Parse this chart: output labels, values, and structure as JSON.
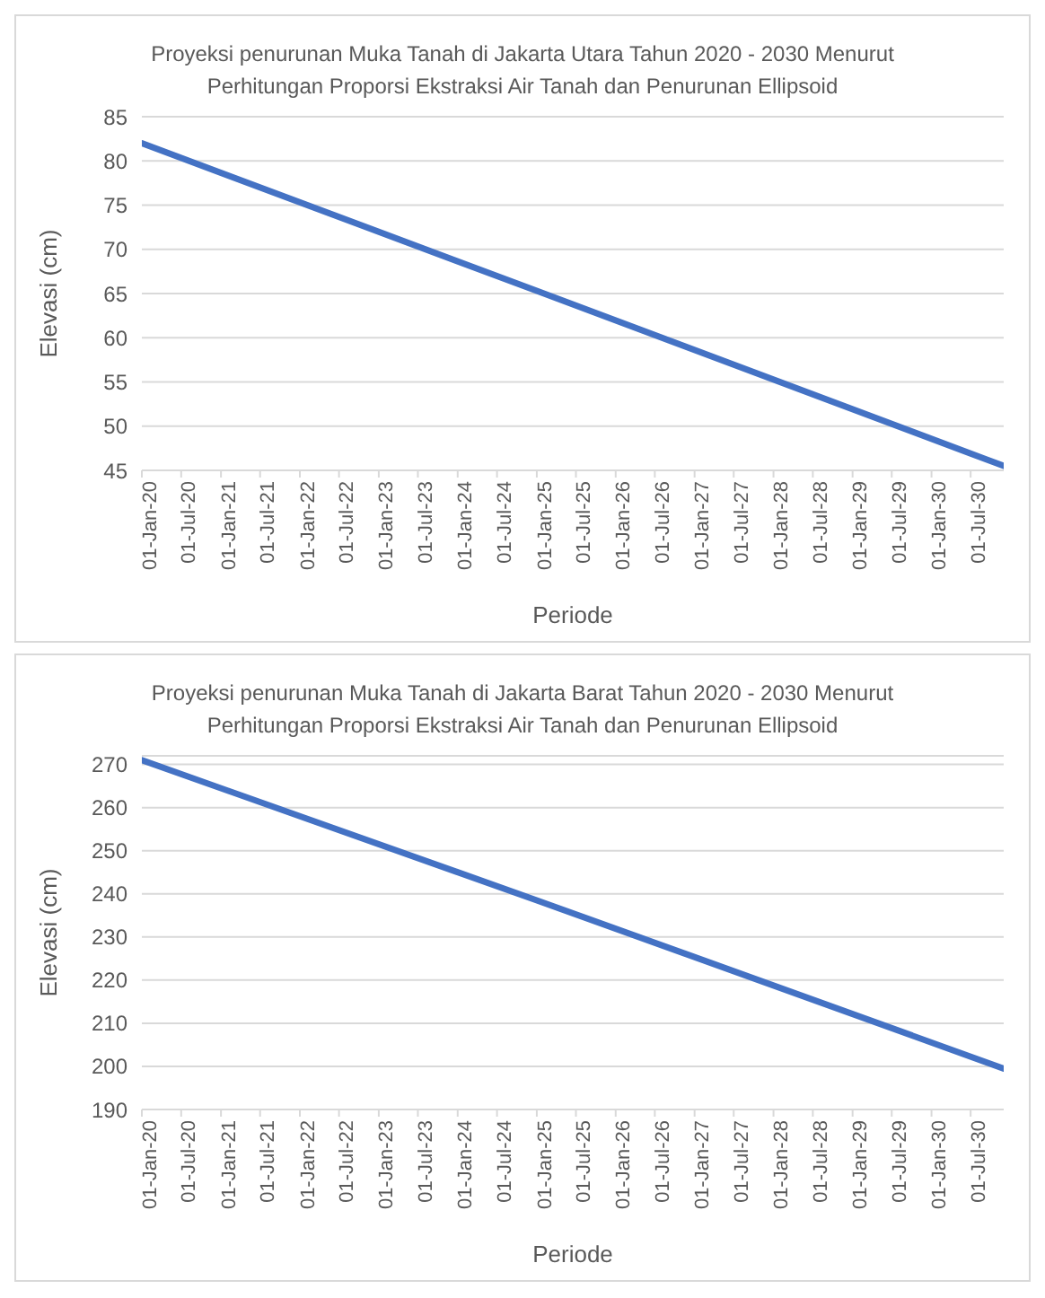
{
  "chart_data": [
    {
      "type": "line",
      "title": "Proyeksi penurunan Muka Tanah di Jakarta Utara Tahun 2020 - 2030 Menurut Perhitungan Proporsi Ekstraksi Air Tanah dan Penurunan Ellipsoid",
      "xlabel": "Periode",
      "ylabel": "Elevasi (cm)",
      "x": [
        "2020-01-01",
        "2025-01-01",
        "2030-12-01"
      ],
      "series": [
        {
          "color": "#4472c4",
          "values": [
            82,
            65.3,
            45.5
          ]
        }
      ],
      "xlim": [
        "2020-01-01",
        "2030-12-01"
      ],
      "xticks": [
        {
          "value": "2020-01-01",
          "label": "01-Jan-20"
        },
        {
          "value": "2020-07-01",
          "label": "01-Jul-20"
        },
        {
          "value": "2021-01-01",
          "label": "01-Jan-21"
        },
        {
          "value": "2021-07-01",
          "label": "01-Jul-21"
        },
        {
          "value": "2022-01-01",
          "label": "01-Jan-22"
        },
        {
          "value": "2022-07-01",
          "label": "01-Jul-22"
        },
        {
          "value": "2023-01-01",
          "label": "01-Jan-23"
        },
        {
          "value": "2023-07-01",
          "label": "01-Jul-23"
        },
        {
          "value": "2024-01-01",
          "label": "01-Jan-24"
        },
        {
          "value": "2024-07-01",
          "label": "01-Jul-24"
        },
        {
          "value": "2025-01-01",
          "label": "01-Jan-25"
        },
        {
          "value": "2025-07-01",
          "label": "01-Jul-25"
        },
        {
          "value": "2026-01-01",
          "label": "01-Jan-26"
        },
        {
          "value": "2026-07-01",
          "label": "01-Jul-26"
        },
        {
          "value": "2027-01-01",
          "label": "01-Jan-27"
        },
        {
          "value": "2027-07-01",
          "label": "01-Jul-27"
        },
        {
          "value": "2028-01-01",
          "label": "01-Jan-28"
        },
        {
          "value": "2028-07-01",
          "label": "01-Jul-28"
        },
        {
          "value": "2029-01-01",
          "label": "01-Jan-29"
        },
        {
          "value": "2029-07-01",
          "label": "01-Jul-29"
        },
        {
          "value": "2030-01-01",
          "label": "01-Jan-30"
        },
        {
          "value": "2030-07-01",
          "label": "01-Jul-30"
        }
      ],
      "ylim": [
        45,
        85
      ],
      "yticks": [
        45,
        50,
        55,
        60,
        65,
        70,
        75,
        80,
        85
      ],
      "grid": "y",
      "legend": false,
      "marker": "none",
      "line_style": "solid"
    },
    {
      "type": "line",
      "title": "Proyeksi penurunan Muka Tanah di Jakarta Barat Tahun 2020 - 2030 Menurut Perhitungan Proporsi Ekstraksi Air Tanah dan Penurunan Ellipsoid",
      "xlabel": "Periode",
      "ylabel": "Elevasi (cm)",
      "x": [
        "2020-01-01",
        "2025-01-01",
        "2030-12-01"
      ],
      "series": [
        {
          "color": "#4472c4",
          "values": [
            271,
            238.5,
            199.5
          ]
        }
      ],
      "xlim": [
        "2020-01-01",
        "2030-12-01"
      ],
      "xticks": [
        {
          "value": "2020-01-01",
          "label": "01-Jan-20"
        },
        {
          "value": "2020-07-01",
          "label": "01-Jul-20"
        },
        {
          "value": "2021-01-01",
          "label": "01-Jan-21"
        },
        {
          "value": "2021-07-01",
          "label": "01-Jul-21"
        },
        {
          "value": "2022-01-01",
          "label": "01-Jan-22"
        },
        {
          "value": "2022-07-01",
          "label": "01-Jul-22"
        },
        {
          "value": "2023-01-01",
          "label": "01-Jan-23"
        },
        {
          "value": "2023-07-01",
          "label": "01-Jul-23"
        },
        {
          "value": "2024-01-01",
          "label": "01-Jan-24"
        },
        {
          "value": "2024-07-01",
          "label": "01-Jul-24"
        },
        {
          "value": "2025-01-01",
          "label": "01-Jan-25"
        },
        {
          "value": "2025-07-01",
          "label": "01-Jul-25"
        },
        {
          "value": "2026-01-01",
          "label": "01-Jan-26"
        },
        {
          "value": "2026-07-01",
          "label": "01-Jul-26"
        },
        {
          "value": "2027-01-01",
          "label": "01-Jan-27"
        },
        {
          "value": "2027-07-01",
          "label": "01-Jul-27"
        },
        {
          "value": "2028-01-01",
          "label": "01-Jan-28"
        },
        {
          "value": "2028-07-01",
          "label": "01-Jul-28"
        },
        {
          "value": "2029-01-01",
          "label": "01-Jan-29"
        },
        {
          "value": "2029-07-01",
          "label": "01-Jul-29"
        },
        {
          "value": "2030-01-01",
          "label": "01-Jan-30"
        },
        {
          "value": "2030-07-01",
          "label": "01-Jul-30"
        }
      ],
      "ylim": [
        190,
        272
      ],
      "yticks": [
        190,
        200,
        210,
        220,
        230,
        240,
        250,
        260,
        270
      ],
      "grid": "y",
      "legend": false,
      "marker": "none",
      "line_style": "solid"
    }
  ]
}
